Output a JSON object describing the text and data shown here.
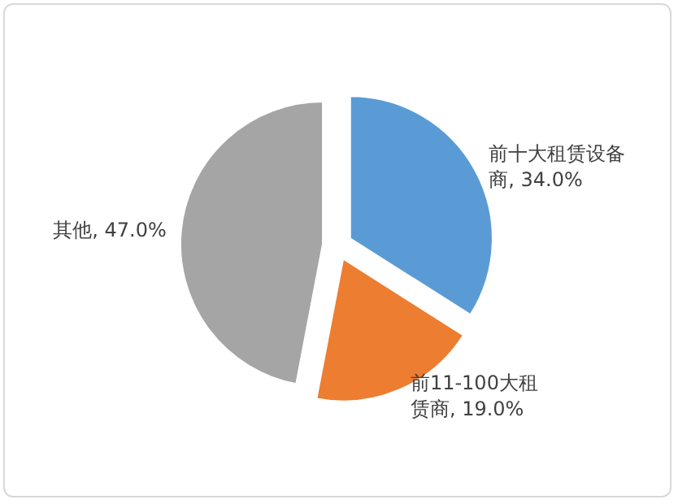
{
  "chart_data": {
    "type": "pie",
    "categories": [
      "前十大租赁设备商",
      "前11-100大租赁商",
      "其他"
    ],
    "values": [
      34.0,
      19.0,
      47.0
    ],
    "value_labels": [
      "34.0%",
      "19.0%",
      "47.0%"
    ],
    "colors": [
      "#5b9bd5",
      "#ed7d31",
      "#a5a5a5"
    ],
    "legend": false
  }
}
